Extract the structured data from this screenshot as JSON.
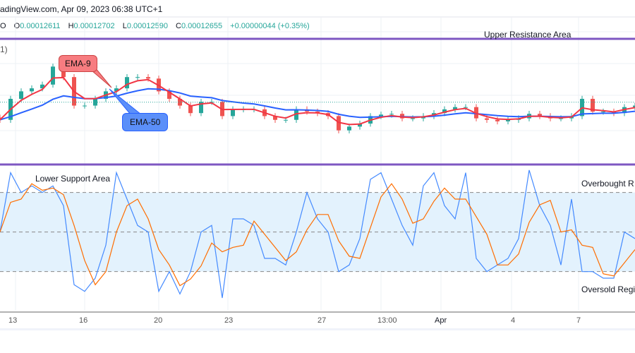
{
  "header": {
    "source": "adingView.com, Apr 09, 2023 06:38 UTC+1"
  },
  "ohlc": {
    "prefix": "O",
    "open_label": "O",
    "open": "0.00012611",
    "high_label": "H",
    "high": "0.00012702",
    "low_label": "L",
    "low": "0.00012590",
    "close_label": "C",
    "close": "0.00012655",
    "change": "+0.00000044 (+0.35%)"
  },
  "pane_label": "1)",
  "annotations": {
    "upper": "Upper Resistance Area",
    "lower": "Lower Support Area",
    "overbought": "Overbought R",
    "oversold": "Oversold Regi",
    "ema9": "EMA-9",
    "ema50": "EMA-50"
  },
  "colors": {
    "up": "#26a69a",
    "down": "#ef5350",
    "ema9": "#f23645",
    "ema50": "#2962ff",
    "stoch_k": "#448aff",
    "stoch_d": "#ff6d00",
    "band": "#e3f2fd",
    "level_line": "#7e57c2",
    "ema9_box": "#f77c80",
    "ema50_box": "#5b8ff9"
  },
  "chart_data": [
    {
      "type": "candlestick",
      "title": "",
      "ylim": [
        0.000119,
        0.000135
      ],
      "close": [
        0.0001242,
        0.000127,
        0.000128,
        0.0001284,
        0.0001289,
        0.0001313,
        0.0001299,
        0.0001261,
        0.0001261,
        0.000127,
        0.000128,
        0.0001284,
        0.0001299,
        0.0001299,
        0.0001297,
        0.000128,
        0.000127,
        0.0001261,
        0.0001251,
        0.0001266,
        0.0001266,
        0.0001247,
        0.0001256,
        0.0001256,
        0.0001256,
        0.0001247,
        0.0001242,
        0.0001242,
        0.0001256,
        0.0001253,
        0.0001251,
        0.0001247,
        0.0001228,
        0.0001233,
        0.0001237,
        0.0001247,
        0.0001249,
        0.000125,
        0.0001244,
        0.0001244,
        0.0001247,
        0.0001251,
        0.0001256,
        0.0001259,
        0.0001259,
        0.0001244,
        0.0001242,
        0.000124,
        0.0001242,
        0.0001244,
        0.000125,
        0.0001247,
        0.0001244,
        0.0001244,
        0.0001247,
        0.000127,
        0.0001253,
        0.0001253,
        0.0001251,
        0.0001259,
        0.0001261
      ],
      "overlays": [
        "EMA-9",
        "EMA-50"
      ],
      "levels": [
        {
          "name": "Upper Resistance Area"
        }
      ],
      "current_close": 0.00012655
    },
    {
      "type": "line",
      "title": "",
      "ylim": [
        0,
        100
      ],
      "levels": [
        80,
        50,
        20
      ],
      "k": [
        50,
        95,
        80,
        85,
        80,
        85,
        70,
        10,
        5,
        15,
        40,
        95,
        75,
        55,
        50,
        5,
        20,
        3,
        20,
        50,
        55,
        0,
        60,
        60,
        55,
        30,
        30,
        25,
        50,
        80,
        60,
        50,
        20,
        25,
        45,
        90,
        95,
        75,
        55,
        40,
        85,
        95,
        70,
        60,
        95,
        30,
        20,
        25,
        30,
        45,
        97,
        70,
        55,
        25,
        75,
        20,
        20,
        15,
        15,
        50,
        45
      ]
    },
    {
      "type": "axis",
      "x_ticks": [
        "13",
        "16",
        "20",
        "23",
        "27",
        "13:00",
        "Apr",
        "4",
        "7"
      ]
    }
  ]
}
